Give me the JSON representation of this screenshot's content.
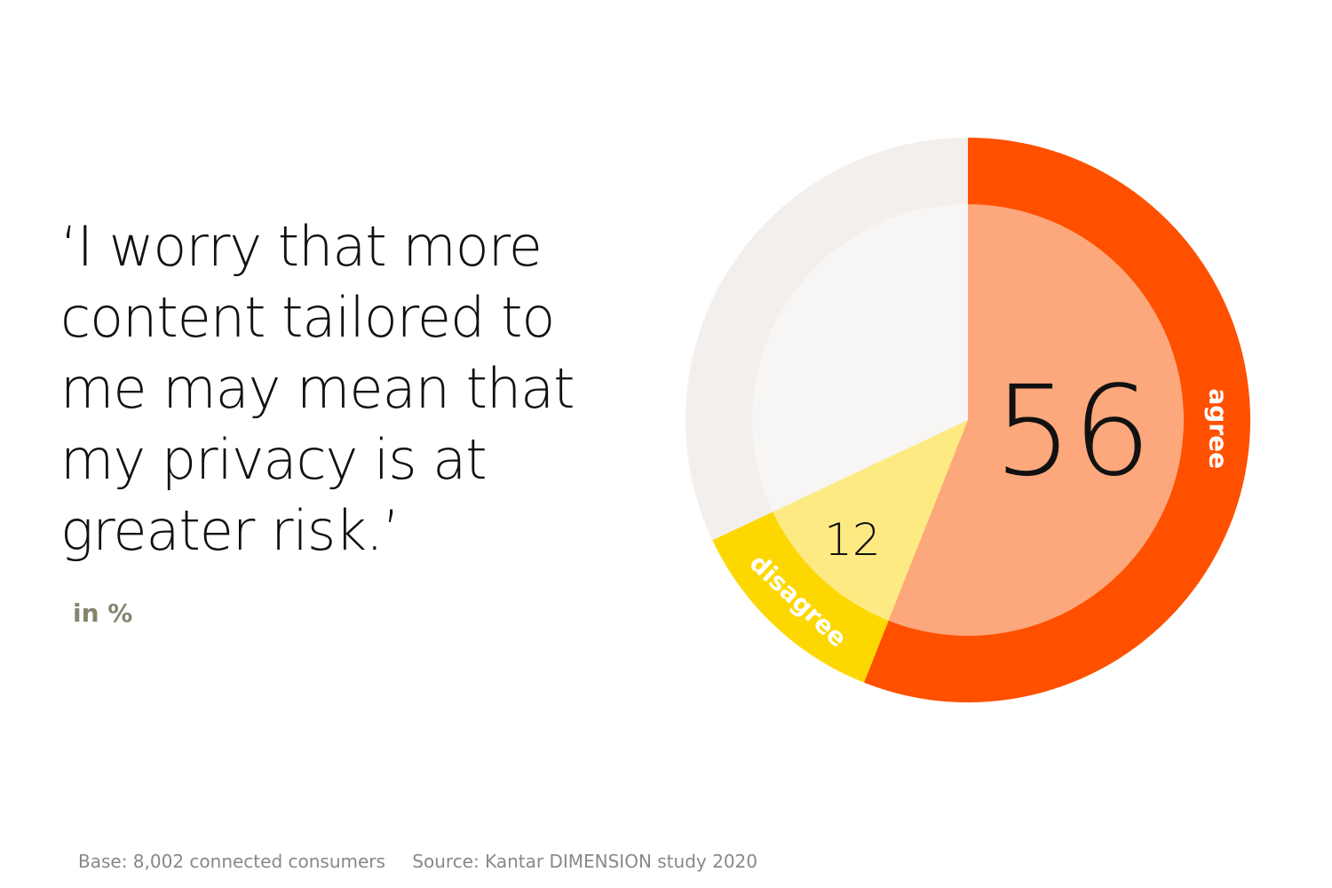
{
  "chart_data": {
    "type": "donut",
    "title": "‘I worry that more content tailored to me may mean that my privacy is at greater risk.’",
    "subtitle": "in %",
    "categories": [
      "agree",
      "disagree",
      null
    ],
    "values": [
      56,
      12,
      32
    ],
    "colors": [
      "#ff5000",
      "#fcd800",
      "#f2efec"
    ],
    "inner_colors": [
      "#fca87c",
      "#fdea82",
      "#f8f6f4"
    ],
    "notes": [
      "Base: 8,002 connected consumers",
      "Source: Kantar DIMENSION study 2020"
    ]
  }
}
